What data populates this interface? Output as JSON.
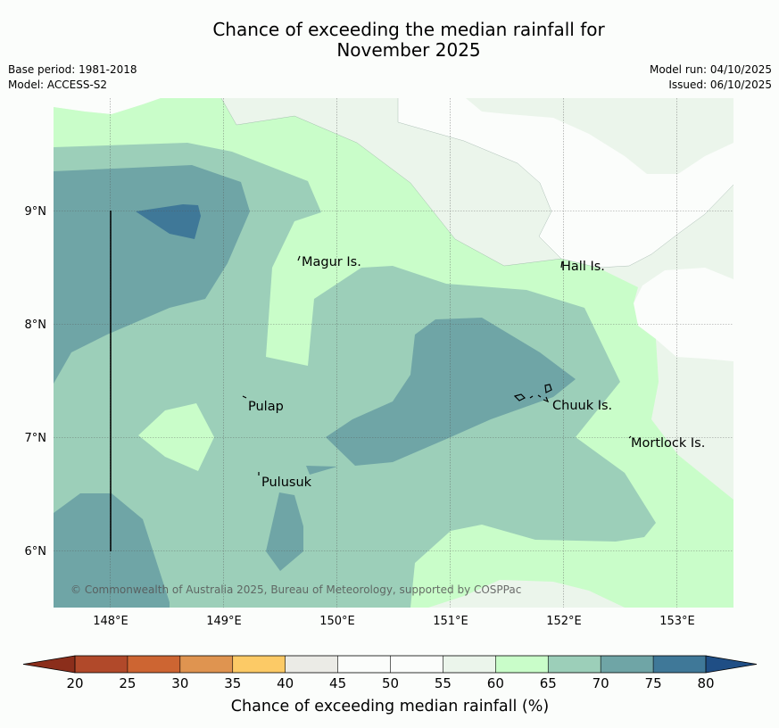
{
  "title": {
    "line1": "Chance of exceeding the median rainfall for",
    "line2": "November 2025"
  },
  "meta_left": {
    "base_period": "Base period: 1981-2018",
    "model": "Model: ACCESS-S2"
  },
  "meta_right": {
    "model_run": "Model run: 04/10/2025",
    "issued": "Issued: 06/10/2025"
  },
  "map": {
    "lon_range": [
      147.5,
      153.5
    ],
    "lat_range": [
      5.5,
      9.95
    ],
    "lon_ticks": [
      "148°E",
      "149°E",
      "150°E",
      "151°E",
      "152°E",
      "153°E"
    ],
    "lat_ticks": [
      "9°N",
      "8°N",
      "7°N",
      "6°N"
    ],
    "places": [
      {
        "name": "Magur Is.",
        "lon": 149.68,
        "lat": 8.58
      },
      {
        "name": "Hall Is.",
        "lon": 151.98,
        "lat": 8.52
      },
      {
        "name": "Pulap",
        "lon": 149.18,
        "lat": 7.35
      },
      {
        "name": "Chuuk Is.",
        "lon": 151.88,
        "lat": 7.33
      },
      {
        "name": "Mortlock Is.",
        "lon": 152.6,
        "lat": 6.98
      },
      {
        "name": "Pulusuk",
        "lon": 149.3,
        "lat": 6.68
      }
    ],
    "copyright": "© Commonwealth of Australia 2025, Bureau of Meteorology, supported by COSPPac"
  },
  "colorbar": {
    "title": "Chance of exceeding median rainfall (%)",
    "ticks": [
      "20",
      "25",
      "30",
      "35",
      "40",
      "45",
      "50",
      "55",
      "60",
      "65",
      "70",
      "75",
      "80"
    ],
    "colors": [
      "#b1492a",
      "#cd6532",
      "#df9450",
      "#fcca66",
      "#ebebe6",
      "#fbfdfb",
      "#fbfdfb",
      "#ebf5eb",
      "#c9fdc9",
      "#9ccfb9",
      "#6fa5a6",
      "#3f7898"
    ],
    "under_color": "#8b2e1b",
    "over_color": "#1f4e85"
  }
}
